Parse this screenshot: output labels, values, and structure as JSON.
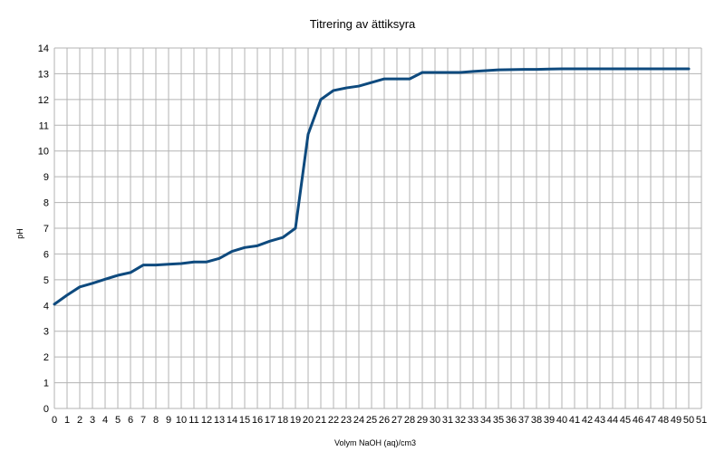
{
  "chart_data": {
    "type": "line",
    "title": "Titrering av ättiksyra",
    "xlabel": "Volym NaOH (aq)/cm3",
    "ylabel": "pH",
    "xlim": [
      0,
      51
    ],
    "ylim": [
      0,
      14
    ],
    "xticks": [
      "0",
      "1",
      "2",
      "3",
      "4",
      "5",
      "6",
      "7",
      "8",
      "9",
      "10",
      "11",
      "12",
      "13",
      "14",
      "15",
      "16",
      "17",
      "18",
      "19",
      "20",
      "21",
      "22",
      "23",
      "24",
      "25",
      "26",
      "27",
      "28",
      "29",
      "30",
      "31",
      "32",
      "33",
      "34",
      "35",
      "36",
      "37",
      "38",
      "39",
      "40",
      "41",
      "42",
      "43",
      "44",
      "45",
      "46",
      "47",
      "48",
      "49",
      "50",
      "51"
    ],
    "yticks": [
      "0",
      "1",
      "2",
      "3",
      "4",
      "5",
      "6",
      "7",
      "8",
      "9",
      "10",
      "11",
      "12",
      "13",
      "14"
    ],
    "grid": true,
    "line_color": "#0e4a7e",
    "series": [
      {
        "x": [
          0,
          1,
          2,
          3,
          4,
          5,
          6,
          7,
          8,
          9,
          10,
          11,
          12,
          13,
          14,
          15,
          16,
          17,
          18,
          19,
          20,
          21,
          22,
          23,
          24,
          25,
          26,
          27,
          28,
          29,
          30,
          31,
          32,
          33,
          34,
          35,
          36,
          37,
          38,
          39,
          40,
          41,
          42,
          43,
          44,
          45,
          46,
          47,
          48,
          49,
          50
        ],
        "values": [
          4.05,
          4.4,
          4.72,
          4.86,
          5.02,
          5.17,
          5.28,
          5.57,
          5.57,
          5.6,
          5.63,
          5.69,
          5.69,
          5.83,
          6.1,
          6.25,
          6.32,
          6.5,
          6.64,
          7.0,
          10.65,
          12.0,
          12.35,
          12.45,
          12.52,
          12.66,
          12.8,
          12.8,
          12.8,
          13.05,
          13.05,
          13.05,
          13.05,
          13.09,
          13.12,
          13.15,
          13.16,
          13.17,
          13.17,
          13.18,
          13.19,
          13.19,
          13.19,
          13.19,
          13.19,
          13.19,
          13.19,
          13.19,
          13.19,
          13.19,
          13.19
        ]
      }
    ]
  }
}
